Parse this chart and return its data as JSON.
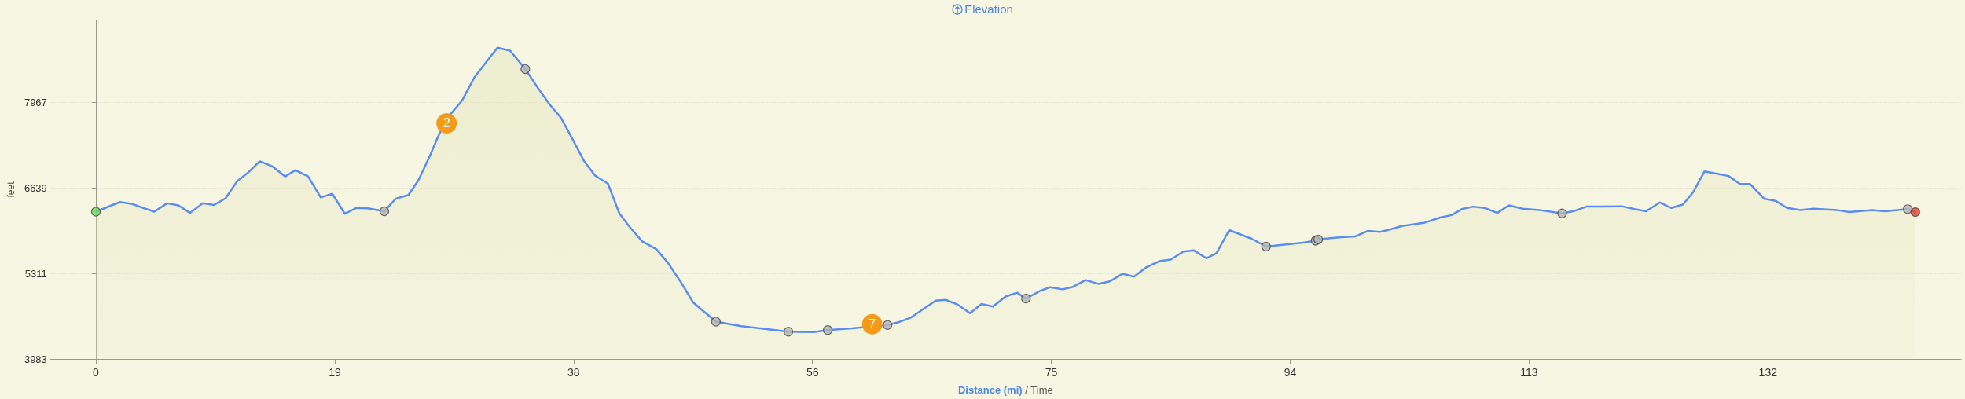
{
  "chart_data": {
    "type": "area",
    "title": "Elevation",
    "xlabel": "Distance (mi) / Time",
    "ylabel": "feet",
    "xlim": [
      -3.6,
      146.8
    ],
    "ylim": [
      3983,
      9245
    ],
    "xticks": [
      0,
      {
        "value": 18.8,
        "label": "19"
      },
      {
        "value": 37.6,
        "label": "38"
      },
      {
        "value": 56.4,
        "label": "56"
      },
      {
        "value": 75.2,
        "label": "75"
      },
      94,
      {
        "value": 112.8,
        "label": "113"
      },
      {
        "value": 131.6,
        "label": "132"
      }
    ],
    "yticks": [
      3983,
      5311,
      6639,
      7967
    ],
    "grid": "y",
    "marker": "none",
    "line_style": "solid",
    "annotations": [
      {
        "text": "2",
        "x": 27.6,
        "y": 7647
      },
      {
        "text": "7",
        "x": 61.1,
        "y": 4524
      }
    ],
    "series": [
      {
        "color": "#5b8def",
        "x": [
          0,
          1.9,
          2.8,
          3.8,
          4.6,
          5.6,
          6.5,
          7.4,
          8.4,
          9.3,
          10.2,
          11.1,
          12.0,
          12.9,
          13.9,
          14.9,
          15.7,
          16.7,
          17.7,
          18.6,
          19.6,
          20.5,
          21.4,
          22.7,
          23.6,
          24.6,
          25.4,
          26.3,
          27.0,
          27.9,
          28.8,
          29.8,
          31.6,
          32.6,
          33.8,
          34.7,
          35.7,
          36.6,
          37.5,
          38.4,
          39.3,
          40.3,
          41.2,
          42.0,
          43.0,
          44.1,
          45.0,
          46.0,
          47.0,
          48.8,
          50.8,
          52.8,
          54.5,
          56.5,
          57.6,
          59.5,
          62.3,
          63.1,
          64.1,
          66.1,
          66.9,
          67.8,
          68.8,
          69.7,
          70.6,
          71.6,
          72.5,
          73.2,
          74.3,
          75.1,
          76.1,
          76.9,
          77.9,
          78.9,
          79.8,
          80.8,
          81.7,
          82.7,
          83.7,
          84.6,
          85.6,
          86.4,
          87.4,
          88.2,
          89.2,
          91.0,
          92.1,
          95.0,
          96.0,
          96.2,
          98.0,
          99.1,
          100.1,
          101.1,
          101.9,
          102.8,
          104.6,
          105.8,
          106.7,
          107.5,
          108.4,
          109.3,
          110.3,
          111.2,
          112.3,
          113.6,
          115.4,
          116.4,
          117.3,
          118.4,
          120.1,
          121.1,
          122.0,
          123.1,
          124.0,
          124.9,
          125.7,
          126.6,
          127.7,
          128.5,
          129.4,
          130.2,
          131.3,
          132.2,
          133.1,
          134.1,
          135.2,
          137.0,
          138.0,
          139.8,
          140.8,
          142.6,
          143.2
        ],
        "values": [
          6272,
          6422,
          6395,
          6324,
          6272,
          6402,
          6369,
          6252,
          6402,
          6376,
          6480,
          6741,
          6884,
          7054,
          6975,
          6819,
          6917,
          6819,
          6493,
          6552,
          6239,
          6330,
          6324,
          6278,
          6474,
          6532,
          6767,
          7145,
          7471,
          7784,
          7993,
          8364,
          8821,
          8775,
          8488,
          8221,
          7941,
          7732,
          7406,
          7067,
          6832,
          6708,
          6245,
          6037,
          5809,
          5691,
          5483,
          5189,
          4863,
          4563,
          4492,
          4446,
          4407,
          4400,
          4433,
          4459,
          4511,
          4550,
          4622,
          4889,
          4902,
          4831,
          4694,
          4837,
          4798,
          4954,
          5013,
          4922,
          5039,
          5098,
          5065,
          5104,
          5209,
          5150,
          5189,
          5307,
          5261,
          5411,
          5502,
          5528,
          5652,
          5672,
          5548,
          5626,
          5985,
          5848,
          5730,
          5789,
          5822,
          5841,
          5874,
          5887,
          5972,
          5959,
          5998,
          6050,
          6102,
          6180,
          6219,
          6311,
          6350,
          6330,
          6252,
          6369,
          6317,
          6298,
          6245,
          6285,
          6350,
          6350,
          6356,
          6311,
          6278,
          6415,
          6330,
          6382,
          6571,
          6897,
          6858,
          6826,
          6702,
          6702,
          6474,
          6441,
          6330,
          6298,
          6317,
          6298,
          6265,
          6298,
          6278,
          6311,
          6265
        ]
      },
      {
        "type": "scatter",
        "marker": "circle",
        "x": [
          0,
          22.7,
          33.8,
          48.8,
          54.5,
          57.6,
          62.3,
          73.2,
          92.1,
          96.0,
          96.2,
          115.4,
          142.6,
          143.2
        ],
        "values": [
          6272,
          6278,
          8488,
          4563,
          4407,
          4433,
          4511,
          4922,
          5730,
          5822,
          5841,
          6245,
          6311,
          6265
        ],
        "colors": [
          "#6ee05a",
          "#b5b5b5",
          "#b5b5b5",
          "#b5b5b5",
          "#b5b5b5",
          "#b5b5b5",
          "#b5b5b5",
          "#b5b5b5",
          "#b5b5b5",
          "#b5b5b5",
          "#b5b5b5",
          "#b5b5b5",
          "#b5b5b5",
          "#e8452c"
        ]
      }
    ]
  }
}
